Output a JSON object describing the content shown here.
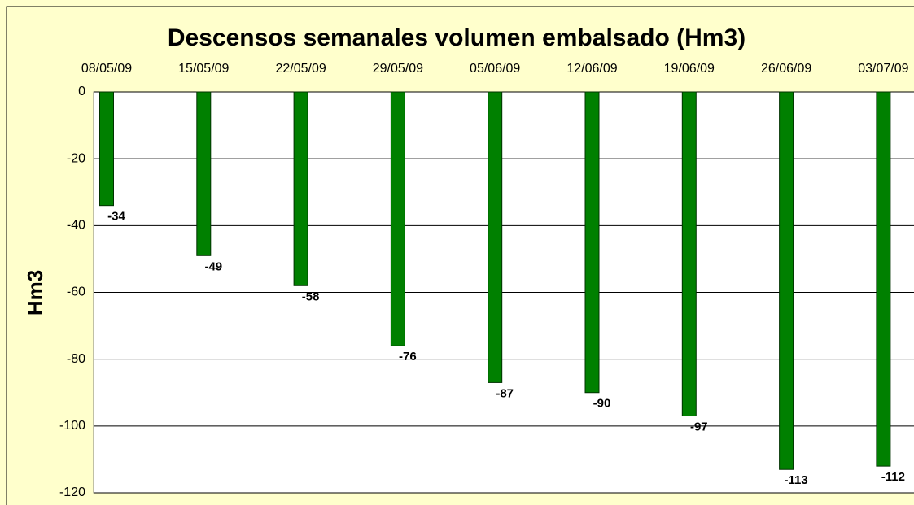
{
  "chart_data": {
    "type": "bar",
    "title": "Descensos semanales volumen embalsado (Hm3)",
    "y_label": "Hm3",
    "categories": [
      "08/05/09",
      "15/05/09",
      "22/05/09",
      "29/05/09",
      "05/06/09",
      "12/06/09",
      "19/06/09",
      "26/06/09",
      "03/07/09"
    ],
    "values": [
      -34,
      -49,
      -58,
      -76,
      -87,
      -90,
      -97,
      -113,
      -112
    ],
    "color": "#008000",
    "ylim": [
      -120,
      0
    ],
    "yticks": [
      0,
      -20,
      -40,
      -60,
      -80,
      -100,
      -120
    ],
    "grid": true
  }
}
